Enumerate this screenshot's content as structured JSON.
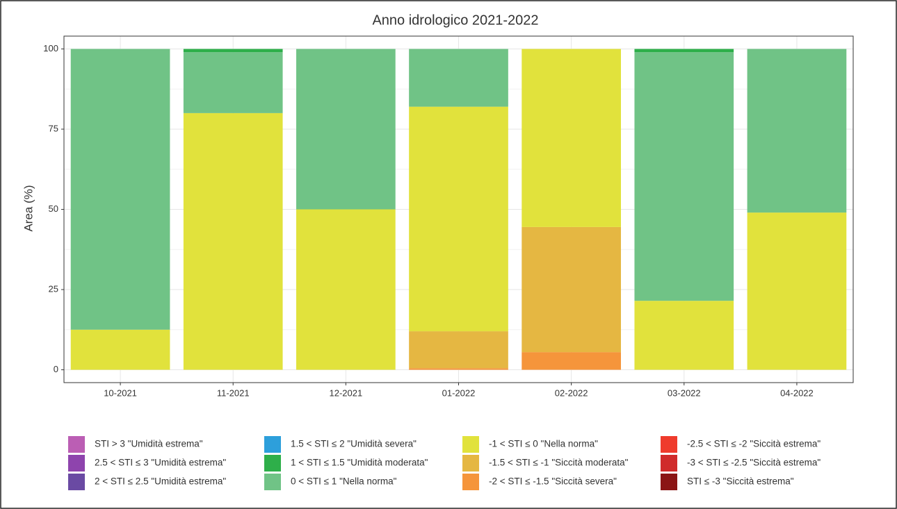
{
  "chart_data": {
    "type": "stacked_bar",
    "title": "Anno idrologico 2021-2022",
    "y_label": "Area (%)",
    "categories": [
      "10-2021",
      "11-2021",
      "12-2021",
      "01-2022",
      "02-2022",
      "03-2022",
      "04-2022"
    ],
    "ylim": [
      -4,
      104
    ],
    "yticks": [
      0,
      25,
      50,
      75,
      100
    ],
    "grid": true,
    "series": [
      {
        "name": "STI > 3 \"Umidità estrema\"",
        "color": "#bb5eb4",
        "values": [
          0,
          0,
          0,
          0,
          0,
          0,
          0
        ]
      },
      {
        "name": "2.5 < STI ≤ 3 \"Umidità estrema\"",
        "color": "#8e44ad",
        "values": [
          0,
          0,
          0,
          0,
          0,
          0,
          0
        ]
      },
      {
        "name": "2 < STI ≤ 2.5 \"Umidità estrema\"",
        "color": "#6a4aa3",
        "values": [
          0,
          0,
          0,
          0,
          0,
          0,
          0
        ]
      },
      {
        "name": "1.5 < STI ≤ 2 \"Umidità severa\"",
        "color": "#2d9fdb",
        "values": [
          0,
          0,
          0,
          0,
          0,
          0,
          0
        ]
      },
      {
        "name": "1 < STI ≤ 1.5 \"Umidità moderata\"",
        "color": "#2eaf4a",
        "values": [
          0,
          1,
          0,
          0,
          0,
          1,
          0
        ]
      },
      {
        "name": "0 < STI ≤ 1 \"Nella norma\"",
        "color": "#70c386",
        "values": [
          87.5,
          19,
          50,
          18,
          0,
          77.5,
          51
        ]
      },
      {
        "name": "-1 < STI ≤ 0 \"Nella norma\"",
        "color": "#e1e23c",
        "values": [
          12.5,
          80,
          50,
          70,
          55.5,
          21.5,
          49
        ]
      },
      {
        "name": "-1.5 < STI ≤ -1 \"Siccità moderata\"",
        "color": "#e5b742",
        "values": [
          0,
          0,
          0,
          11.5,
          39,
          0,
          0
        ]
      },
      {
        "name": "-2 < STI ≤ -1.5 \"Siccità severa\"",
        "color": "#f5953b",
        "values": [
          0,
          0,
          0,
          0.5,
          5.5,
          0,
          0
        ]
      },
      {
        "name": "-2.5 < STI ≤ -2 \"Siccità estrema\"",
        "color": "#ef3b2c",
        "values": [
          0,
          0,
          0,
          0,
          0,
          0,
          0
        ]
      },
      {
        "name": "-3 < STI ≤ -2.5 \"Siccità estrema\"",
        "color": "#d02b2b",
        "values": [
          0,
          0,
          0,
          0,
          0,
          0,
          0
        ]
      },
      {
        "name": "STI ≤ -3 \"Siccità estrema\"",
        "color": "#8b1515",
        "values": [
          0,
          0,
          0,
          0,
          0,
          0,
          0
        ]
      }
    ]
  }
}
